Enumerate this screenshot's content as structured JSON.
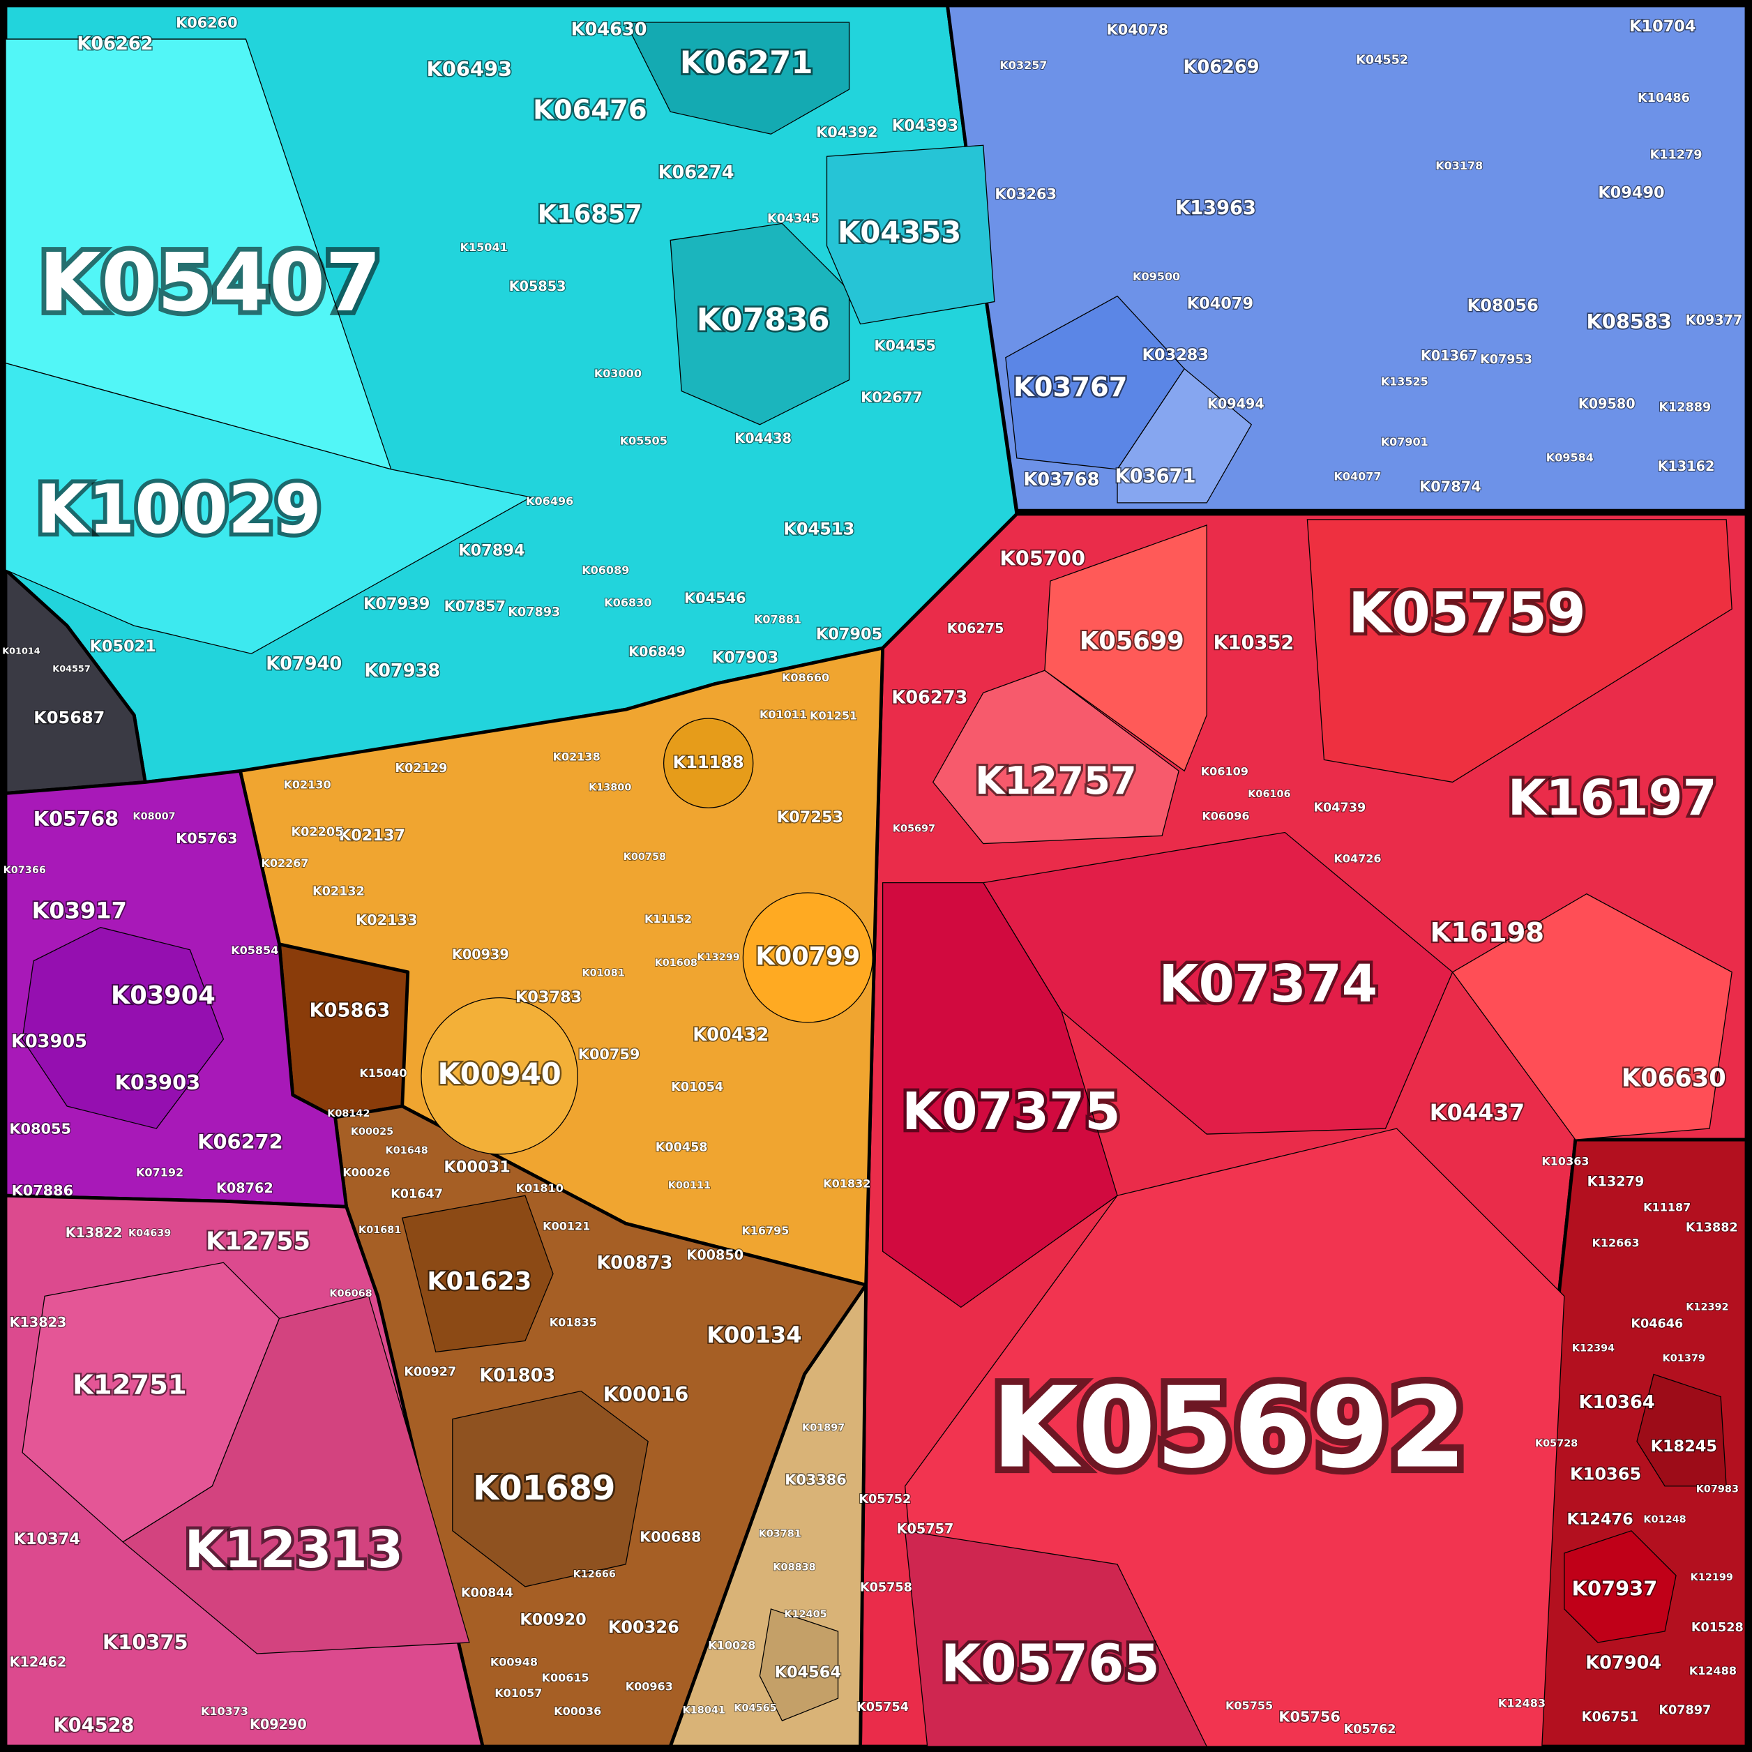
{
  "regions": [
    [
      "K05407",
      "K10029",
      "K07836",
      "K04353",
      "K06271",
      "K06476",
      "K16857",
      "K06274",
      "K06493",
      "K04630",
      "K06262",
      "K06260",
      "K04393",
      "K04392",
      "K04345",
      "K04455",
      "K02677",
      "K04438",
      "K04513",
      "K04546",
      "K07905",
      "K07903",
      "K07881",
      "K07894",
      "K07939",
      "K07857",
      "K07893",
      "K07940",
      "K07938",
      "K05021",
      "K06849",
      "K05853",
      "K15041",
      "K03000",
      "K05505",
      "K06089",
      "K06830",
      "K06496"
    ],
    [
      "K05687",
      "K01014",
      "K04557"
    ],
    [
      "K03767",
      "K06269",
      "K04078",
      "K03257",
      "K03263",
      "K13963",
      "K04079",
      "K03283",
      "K03671",
      "K03768",
      "K09494",
      "K09500",
      "K08056",
      "K08583",
      "K09377",
      "K01367",
      "K07953",
      "K09580",
      "K07874",
      "K09490",
      "K10704",
      "K10486",
      "K11279",
      "K12889",
      "K13162",
      "K03178",
      "K07901",
      "K04077",
      "K09584",
      "K04552",
      "K13525"
    ],
    [
      "K05692",
      "K05765",
      "K05759",
      "K16197",
      "K07374",
      "K07375",
      "K12757",
      "K05700",
      "K05699",
      "K10352",
      "K06275",
      "K06273",
      "K16198",
      "K06630",
      "K04437",
      "K04739",
      "K04726",
      "K06109",
      "K06106",
      "K06096",
      "K05757",
      "K05752",
      "K05758",
      "K05754",
      "K05755",
      "K05756",
      "K05762",
      "K05697",
      "K10363"
    ],
    [
      "K13279",
      "K11187",
      "K13882",
      "K12663",
      "K04646",
      "K12392",
      "K01379",
      "K12394",
      "K10364",
      "K18245",
      "K10365",
      "K12476",
      "K07937",
      "K07904",
      "K01528",
      "K12488",
      "K07897",
      "K06751",
      "K12483",
      "K05728",
      "K07983",
      "K12199",
      "K01248"
    ],
    [
      "K11188",
      "K07253",
      "K00799",
      "K00432",
      "K11152",
      "K13299",
      "K01608",
      "K00940",
      "K03783",
      "K00939",
      "K00759",
      "K01054",
      "K00458",
      "K01832",
      "K16795",
      "K00111",
      "K02137",
      "K02133",
      "K02132",
      "K02205",
      "K02129",
      "K02130",
      "K02267",
      "K02138",
      "K13800",
      "K00758",
      "K08660",
      "K01251",
      "K01011",
      "K01081"
    ],
    [
      "K05863",
      "K15040",
      "K08142"
    ],
    [
      "K00031",
      "K01647",
      "K00026",
      "K01623",
      "K00873",
      "K00850",
      "K00134",
      "K01803",
      "K00016",
      "K01689",
      "K00927",
      "K01835",
      "K01810",
      "K00121",
      "K00688",
      "K00920",
      "K00326",
      "K00844",
      "K00948",
      "K00615",
      "K01057",
      "K00963",
      "K00036",
      "K01681",
      "K12666",
      "K00025",
      "K01648"
    ],
    [
      "K03386",
      "K04564",
      "K10028",
      "K03781",
      "K08838",
      "K12405",
      "K04565",
      "K18041",
      "K01897"
    ],
    [
      "K05768",
      "K05763",
      "K03917",
      "K03904",
      "K03905",
      "K03903",
      "K08055",
      "K06272",
      "K07886",
      "K07192",
      "K08762",
      "K05854",
      "K08007",
      "K07366"
    ],
    [
      "K12313",
      "K12755",
      "K13822",
      "K13823",
      "K12751",
      "K10374",
      "K10375",
      "K12462",
      "K04528",
      "K10373",
      "K09290",
      "K06068",
      "K04639"
    ]
  ]
}
